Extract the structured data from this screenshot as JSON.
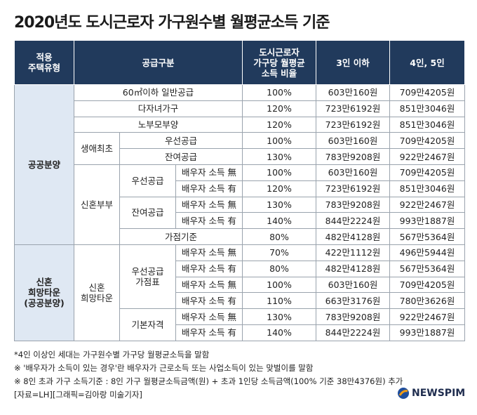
{
  "title": "2020년도 도시근로자 가구원수별 월평균소득 기준",
  "table": {
    "header": [
      "적용\n주택유형",
      "공급구분",
      "도시근로자\n가구당 월평균\n소득 비율",
      "3인 이하",
      "4인, 5인"
    ],
    "rows": [
      [
        "공공분양",
        "60㎡이하 일반공급",
        "100%",
        "603만160원",
        "709만4205원"
      ],
      [
        "다자녀가구",
        "120%",
        "723만6192원",
        "851만3046원"
      ],
      [
        "노부모부양",
        "120%",
        "723만6192원",
        "851만3046원"
      ],
      [
        "생애최초",
        "우선공급",
        "100%",
        "603만160원",
        "709만4205원"
      ],
      [
        "잔여공급",
        "130%",
        "783만9208원",
        "922만2467원"
      ],
      [
        "신혼부부",
        "우선공급",
        "배우자 소득 無",
        "100%",
        "603만160원",
        "709만4205원"
      ],
      [
        "배우자 소득 有",
        "120%",
        "723만6192원",
        "851만3046원"
      ],
      [
        "잔여공급",
        "배우자 소득 無",
        "130%",
        "783만9208원",
        "922만2467원"
      ],
      [
        "배우자 소득 有",
        "140%",
        "844만2224원",
        "993만1887원"
      ],
      [
        "가점기준",
        "80%",
        "482만4128원",
        "567만5364원"
      ],
      [
        "신혼\n희망타운\n(공공분양)",
        "신혼\n희망타운",
        "우선공급\n가점표",
        "배우자 소득 無",
        "70%",
        "422만1112원",
        "496만5944원"
      ],
      [
        "배우자 소득 有",
        "80%",
        "482만4128원",
        "567만5364원"
      ],
      [
        "배우자 소득 無",
        "100%",
        "603만160원",
        "709만4205원"
      ],
      [
        "배우자 소득 有",
        "110%",
        "663만3176원",
        "780만3626원"
      ],
      [
        "기본자격",
        "배우자 소득 無",
        "130%",
        "783만9208원",
        "922만2467원"
      ],
      [
        "배우자 소득 有",
        "140%",
        "844만2224원",
        "993만1887원"
      ]
    ]
  },
  "notes": [
    "*4인 이상인 세대는 가구원수별 가구당 월평균소득을 말함",
    "※ '배우자가 소득이 있는 경우'란 배우자가 근로소득 또는 사업소득이 있는 맞벌이를 말함",
    "※ 8인 초과 가구 소득기준 : 8인 가구 월평균소득금액(원) + 초과 1인당 소득금액(100% 기준 38만4376원) 추가"
  ],
  "source": "[자료=LH][그래픽=김아랑 미술기자]",
  "logo": "NEWSPIM"
}
